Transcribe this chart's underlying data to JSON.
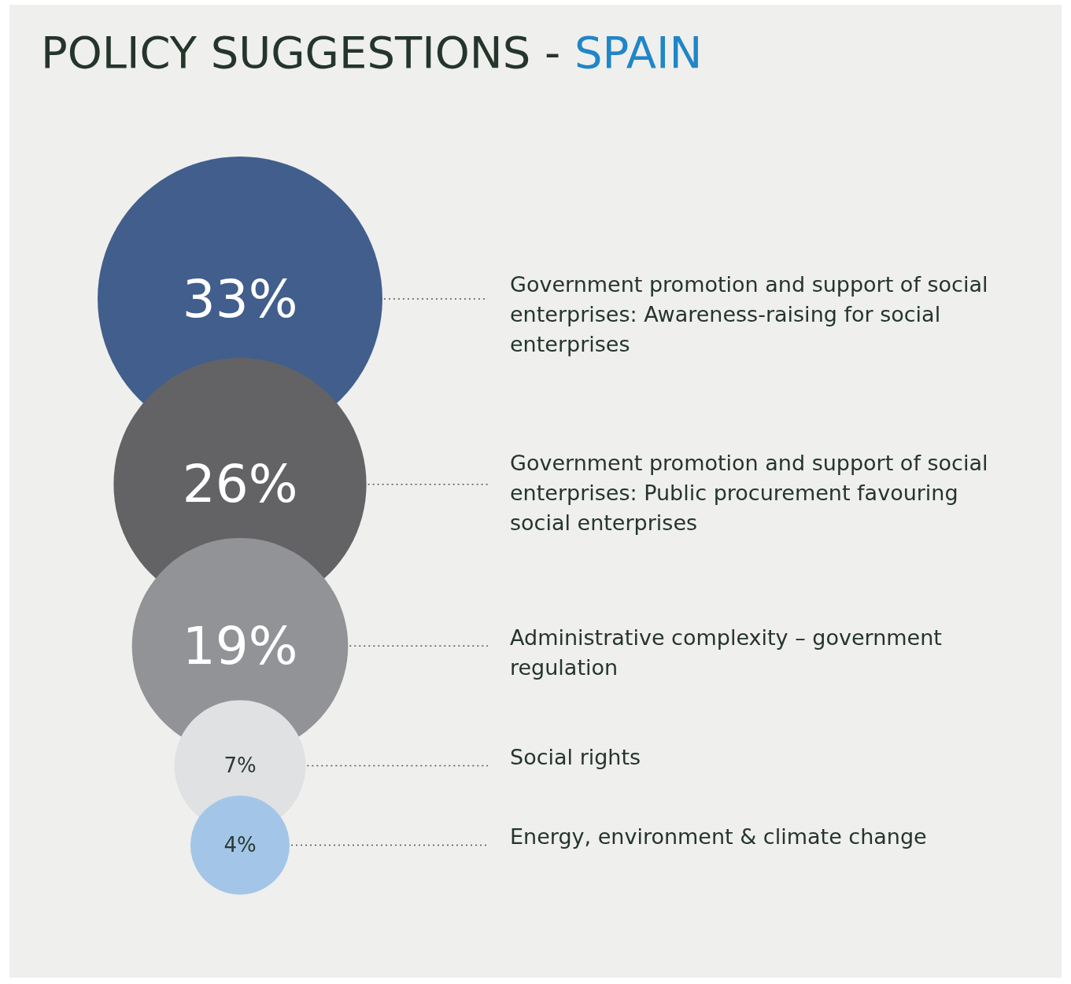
{
  "chart_data": {
    "type": "other",
    "title": "POLICY SUGGESTIONS - SPAIN",
    "categories": [
      "Government promotion and support of social enterprises: Awareness-raising for social enterprises",
      "Government promotion and support of social enterprises: Public procurement favouring social enterprises",
      "Administrative complexity – government regulation",
      "Social rights",
      "Energy, environment & climate change"
    ],
    "values": [
      33,
      26,
      19,
      7,
      4
    ],
    "value_labels": [
      "33%",
      "26%",
      "19%",
      "7%",
      "4%"
    ],
    "colors": [
      "#415e8c",
      "#636365",
      "#929396",
      "#e0e1e3",
      "#a3c6e8"
    ]
  }
}
